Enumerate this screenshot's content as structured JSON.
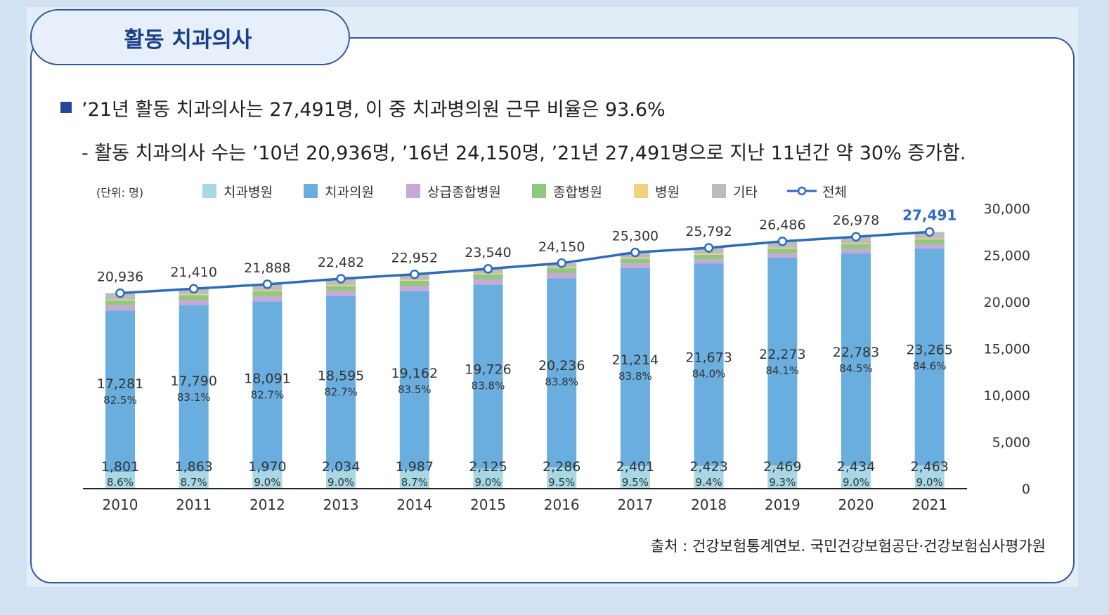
{
  "tab": {
    "title": "활동 치과의사"
  },
  "summary": {
    "headline": "’21년 활동 치과의사는 27,491명, 이 중 치과병의원 근무 비율은 93.6%",
    "detail": "- 활동 치과의사 수는 ’10년 20,936명, ’16년 24,150명, ’21년 27,491명으로 지난 11년간 약 30% 증가함."
  },
  "source": "출처 : 건강보험통계연보. 국민건강보험공단·건강보험심사평가원",
  "chart_data": {
    "type": "bar",
    "stacked": true,
    "unit_label": "(단위: 명)",
    "categories": [
      "2010",
      "2011",
      "2012",
      "2013",
      "2014",
      "2015",
      "2016",
      "2017",
      "2018",
      "2019",
      "2020",
      "2021"
    ],
    "ylim": [
      0,
      30000
    ],
    "yticks": [
      0,
      5000,
      10000,
      15000,
      20000,
      25000,
      30000
    ],
    "ytick_labels": [
      "0",
      "5,000",
      "10,000",
      "15,000",
      "20,000",
      "25,000",
      "30,000"
    ],
    "legend_position": "top",
    "series": [
      {
        "name": "치과병원",
        "color": "#a8d8e6",
        "values": [
          1801,
          1863,
          1970,
          2034,
          1987,
          2125,
          2286,
          2401,
          2423,
          2469,
          2434,
          2463
        ],
        "labels": [
          "1,801",
          "1,863",
          "1,970",
          "2,034",
          "1,987",
          "2,125",
          "2,286",
          "2,401",
          "2,423",
          "2,469",
          "2,434",
          "2,463"
        ],
        "pct": [
          "8.6%",
          "8.7%",
          "9.0%",
          "9.0%",
          "8.7%",
          "9.0%",
          "9.5%",
          "9.5%",
          "9.4%",
          "9.3%",
          "9.0%",
          "9.0%"
        ]
      },
      {
        "name": "치과의원",
        "color": "#6aaee0",
        "values": [
          17281,
          17790,
          18091,
          18595,
          19162,
          19726,
          20236,
          21214,
          21673,
          22273,
          22783,
          23265
        ],
        "labels": [
          "17,281",
          "17,790",
          "18,091",
          "18,595",
          "19,162",
          "19,726",
          "20,236",
          "21,214",
          "21,673",
          "22,273",
          "22,783",
          "23,265"
        ],
        "pct": [
          "82.5%",
          "83.1%",
          "82.7%",
          "82.7%",
          "83.5%",
          "83.8%",
          "83.8%",
          "83.8%",
          "84.0%",
          "84.1%",
          "84.5%",
          "84.6%"
        ]
      },
      {
        "name": "상급종합병원",
        "color": "#c7a8d6",
        "values": [
          560,
          560,
          560,
          560,
          580,
          560,
          560,
          500,
          460,
          460,
          460,
          460
        ]
      },
      {
        "name": "종합병원",
        "color": "#8ec97c",
        "values": [
          500,
          520,
          520,
          520,
          540,
          520,
          520,
          500,
          500,
          500,
          500,
          500
        ]
      },
      {
        "name": "병원",
        "color": "#f0d27a",
        "values": [
          100,
          100,
          100,
          100,
          100,
          100,
          100,
          100,
          100,
          100,
          100,
          100
        ]
      },
      {
        "name": "기타",
        "color": "#bcbcbc",
        "values": [
          694,
          577,
          647,
          673,
          583,
          509,
          448,
          585,
          636,
          684,
          701,
          703
        ]
      }
    ],
    "total": {
      "name": "전체",
      "color": "#2d6bbf",
      "values": [
        20936,
        21410,
        21888,
        22482,
        22952,
        23540,
        24150,
        25300,
        25792,
        26486,
        26978,
        27491
      ],
      "labels": [
        "20,936",
        "21,410",
        "21,888",
        "22,482",
        "22,952",
        "23,540",
        "24,150",
        "25,300",
        "25,792",
        "26,486",
        "26,978",
        "27,491"
      ],
      "highlight_color": "#2d6bbf"
    }
  }
}
